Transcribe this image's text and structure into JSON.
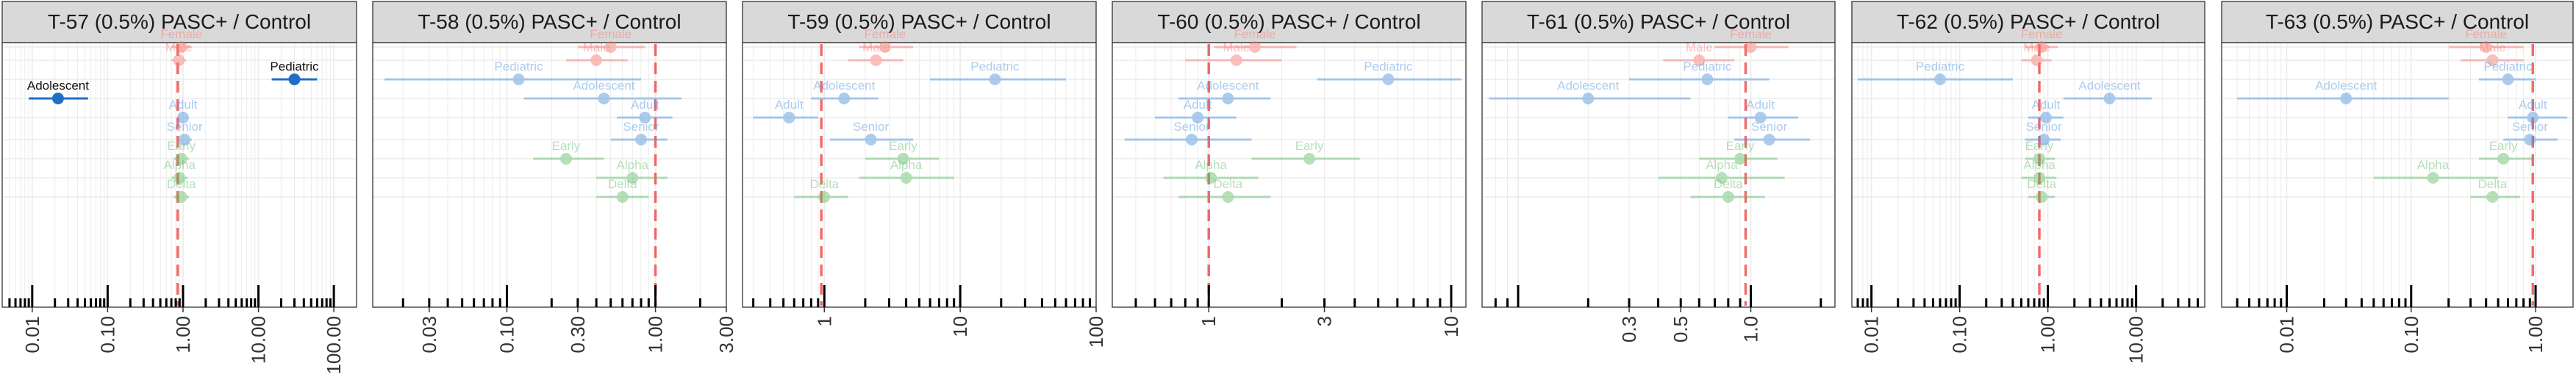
{
  "colors": {
    "sex": "#F8766D",
    "age": "#4A90D9",
    "variant": "#5DBB63",
    "highlight": "#1F6FC5",
    "reference_line": "#EE3B3B",
    "strip_fill": "#D9D9D9",
    "grid": "#EBEBEB"
  },
  "chart_data": [
    {
      "type": "scatter",
      "title": "T-57 (0.5%) PASC+ / Control",
      "log_x": true,
      "xlim": [
        0.004,
        200
      ],
      "ticks": [
        0.01,
        0.1,
        1,
        10,
        100
      ],
      "tick_labels": [
        "0.01",
        "0.10",
        "1.00",
        "10.00",
        "100.00"
      ],
      "ref": 0.85,
      "points": [
        {
          "label": "Female",
          "group": "sex",
          "x": 0.95,
          "lo": 0.7,
          "hi": 1.25
        },
        {
          "label": "Male",
          "group": "sex",
          "x": 0.88,
          "lo": 0.7,
          "hi": 1.1
        },
        {
          "label": "Pediatric",
          "group": "age",
          "x": 30,
          "lo": 15,
          "hi": 60,
          "highlight": true
        },
        {
          "label": "Adolescent",
          "group": "age",
          "x": 0.022,
          "lo": 0.009,
          "hi": 0.055,
          "highlight": true
        },
        {
          "label": "Adult",
          "group": "age",
          "x": 1.0,
          "lo": 0.85,
          "hi": 1.2
        },
        {
          "label": "Senior",
          "group": "age",
          "x": 1.05,
          "lo": 0.85,
          "hi": 1.3
        },
        {
          "label": "Early",
          "group": "variant",
          "x": 0.95,
          "lo": 0.75,
          "hi": 1.2
        },
        {
          "label": "Alpha",
          "group": "variant",
          "x": 0.9,
          "lo": 0.7,
          "hi": 1.15
        },
        {
          "label": "Delta",
          "group": "variant",
          "x": 0.95,
          "lo": 0.75,
          "hi": 1.2
        }
      ]
    },
    {
      "type": "scatter",
      "title": "T-58 (0.5%) PASC+ / Control",
      "log_x": true,
      "xlim": [
        0.0125,
        3.0
      ],
      "ticks": [
        0.03,
        0.1,
        0.3,
        1,
        3
      ],
      "tick_labels": [
        "0.03",
        "0.10",
        "0.30",
        "1.00",
        "3.00"
      ],
      "ref": 1.0,
      "points": [
        {
          "label": "Female",
          "group": "sex",
          "x": 0.5,
          "lo": 0.3,
          "hi": 0.85
        },
        {
          "label": "Male",
          "group": "sex",
          "x": 0.4,
          "lo": 0.25,
          "hi": 0.65
        },
        {
          "label": "Pediatric",
          "group": "age",
          "x": 0.12,
          "lo": 0.015,
          "hi": 0.8
        },
        {
          "label": "Adolescent",
          "group": "age",
          "x": 0.45,
          "lo": 0.13,
          "hi": 1.5
        },
        {
          "label": "Adult",
          "group": "age",
          "x": 0.85,
          "lo": 0.55,
          "hi": 1.3
        },
        {
          "label": "Senior",
          "group": "age",
          "x": 0.8,
          "lo": 0.5,
          "hi": 1.2
        },
        {
          "label": "Early",
          "group": "variant",
          "x": 0.25,
          "lo": 0.15,
          "hi": 0.45
        },
        {
          "label": "Alpha",
          "group": "variant",
          "x": 0.7,
          "lo": 0.4,
          "hi": 1.2
        },
        {
          "label": "Delta",
          "group": "variant",
          "x": 0.6,
          "lo": 0.4,
          "hi": 0.9
        }
      ]
    },
    {
      "type": "scatter",
      "title": "T-59 (0.5%) PASC+ / Control",
      "log_x": true,
      "xlim": [
        0.25,
        100
      ],
      "ticks": [
        1,
        10,
        100
      ],
      "tick_labels": [
        "1",
        "10",
        "100"
      ],
      "ref": 0.95,
      "points": [
        {
          "label": "Female",
          "group": "sex",
          "x": 2.8,
          "lo": 1.8,
          "hi": 4.5
        },
        {
          "label": "Male",
          "group": "sex",
          "x": 2.4,
          "lo": 1.5,
          "hi": 3.8
        },
        {
          "label": "Pediatric",
          "group": "age",
          "x": 18,
          "lo": 6,
          "hi": 60
        },
        {
          "label": "Adolescent",
          "group": "age",
          "x": 1.4,
          "lo": 0.8,
          "hi": 2.5
        },
        {
          "label": "Adult",
          "group": "age",
          "x": 0.55,
          "lo": 0.3,
          "hi": 0.9
        },
        {
          "label": "Senior",
          "group": "age",
          "x": 2.2,
          "lo": 1.1,
          "hi": 4.5
        },
        {
          "label": "Early",
          "group": "variant",
          "x": 3.8,
          "lo": 2.0,
          "hi": 7.0
        },
        {
          "label": "Alpha",
          "group": "variant",
          "x": 4.0,
          "lo": 1.8,
          "hi": 9.0
        },
        {
          "label": "Delta",
          "group": "variant",
          "x": 1.0,
          "lo": 0.6,
          "hi": 1.5
        }
      ]
    },
    {
      "type": "scatter",
      "title": "T-60 (0.5%) PASC+ / Control",
      "log_x": true,
      "xlim": [
        0.4,
        11.5
      ],
      "ticks": [
        1,
        3,
        10
      ],
      "tick_labels": [
        "1",
        "3",
        "10"
      ],
      "ref": 1.0,
      "points": [
        {
          "label": "Female",
          "group": "sex",
          "x": 1.55,
          "lo": 1.05,
          "hi": 2.3
        },
        {
          "label": "Male",
          "group": "sex",
          "x": 1.3,
          "lo": 0.8,
          "hi": 2.0
        },
        {
          "label": "Pediatric",
          "group": "age",
          "x": 5.5,
          "lo": 2.8,
          "hi": 11.0
        },
        {
          "label": "Adolescent",
          "group": "age",
          "x": 1.2,
          "lo": 0.75,
          "hi": 1.8
        },
        {
          "label": "Adult",
          "group": "age",
          "x": 0.9,
          "lo": 0.6,
          "hi": 1.3
        },
        {
          "label": "Senior",
          "group": "age",
          "x": 0.85,
          "lo": 0.45,
          "hi": 1.5
        },
        {
          "label": "Early",
          "group": "variant",
          "x": 2.6,
          "lo": 1.5,
          "hi": 4.2
        },
        {
          "label": "Alpha",
          "group": "variant",
          "x": 1.02,
          "lo": 0.65,
          "hi": 1.6
        },
        {
          "label": "Delta",
          "group": "variant",
          "x": 1.2,
          "lo": 0.75,
          "hi": 1.8
        }
      ]
    },
    {
      "type": "scatter",
      "title": "T-61 (0.5%) PASC+ / Control",
      "log_x": true,
      "xlim": [
        0.07,
        2.3
      ],
      "ticks": [
        0.3,
        0.5,
        1
      ],
      "tick_labels": [
        "0.3",
        "0.5",
        "1.0"
      ],
      "ref": 0.95,
      "points": [
        {
          "label": "Female",
          "group": "sex",
          "x": 1.0,
          "lo": 0.7,
          "hi": 1.45
        },
        {
          "label": "Male",
          "group": "sex",
          "x": 0.6,
          "lo": 0.42,
          "hi": 0.85
        },
        {
          "label": "Pediatric",
          "group": "age",
          "x": 0.65,
          "lo": 0.3,
          "hi": 1.2
        },
        {
          "label": "Adolescent",
          "group": "age",
          "x": 0.2,
          "lo": 0.075,
          "hi": 0.55
        },
        {
          "label": "Adult",
          "group": "age",
          "x": 1.1,
          "lo": 0.8,
          "hi": 1.6
        },
        {
          "label": "Senior",
          "group": "age",
          "x": 1.2,
          "lo": 0.85,
          "hi": 1.8
        },
        {
          "label": "Early",
          "group": "variant",
          "x": 0.9,
          "lo": 0.6,
          "hi": 1.3
        },
        {
          "label": "Alpha",
          "group": "variant",
          "x": 0.75,
          "lo": 0.4,
          "hi": 1.4
        },
        {
          "label": "Delta",
          "group": "variant",
          "x": 0.8,
          "lo": 0.55,
          "hi": 1.15
        }
      ]
    },
    {
      "type": "scatter",
      "title": "T-62 (0.5%) PASC+ / Control",
      "log_x": true,
      "xlim": [
        0.006,
        60
      ],
      "ticks": [
        0.01,
        0.1,
        1,
        10
      ],
      "tick_labels": [
        "0.01",
        "0.10",
        "1.00",
        "10.00"
      ],
      "ref": 0.8,
      "points": [
        {
          "label": "Female",
          "group": "sex",
          "x": 0.85,
          "lo": 0.55,
          "hi": 1.3
        },
        {
          "label": "Male",
          "group": "sex",
          "x": 0.75,
          "lo": 0.5,
          "hi": 1.1
        },
        {
          "label": "Pediatric",
          "group": "age",
          "x": 0.06,
          "lo": 0.007,
          "hi": 0.4
        },
        {
          "label": "Adolescent",
          "group": "age",
          "x": 5.0,
          "lo": 1.5,
          "hi": 15
        },
        {
          "label": "Adult",
          "group": "age",
          "x": 0.95,
          "lo": 0.6,
          "hi": 1.5
        },
        {
          "label": "Senior",
          "group": "age",
          "x": 0.9,
          "lo": 0.55,
          "hi": 1.4
        },
        {
          "label": "Early",
          "group": "variant",
          "x": 0.8,
          "lo": 0.55,
          "hi": 1.2
        },
        {
          "label": "Alpha",
          "group": "variant",
          "x": 0.8,
          "lo": 0.5,
          "hi": 1.25
        },
        {
          "label": "Delta",
          "group": "variant",
          "x": 0.85,
          "lo": 0.6,
          "hi": 1.2
        }
      ]
    },
    {
      "type": "scatter",
      "title": "T-63 (0.5%) PASC+ / Control",
      "log_x": true,
      "xlim": [
        0.003,
        2.0
      ],
      "ticks": [
        0.01,
        0.1,
        1
      ],
      "tick_labels": [
        "0.01",
        "0.10",
        "1.00"
      ],
      "ref": 0.95,
      "points": [
        {
          "label": "Female",
          "group": "sex",
          "x": 0.4,
          "lo": 0.2,
          "hi": 0.8
        },
        {
          "label": "Male",
          "group": "sex",
          "x": 0.45,
          "lo": 0.25,
          "hi": 0.8
        },
        {
          "label": "Pediatric",
          "group": "age",
          "x": 0.6,
          "lo": 0.35,
          "hi": 1.0
        },
        {
          "label": "Adolescent",
          "group": "age",
          "x": 0.03,
          "lo": 0.004,
          "hi": 0.2
        },
        {
          "label": "Adult",
          "group": "age",
          "x": 0.95,
          "lo": 0.6,
          "hi": 1.8
        },
        {
          "label": "Senior",
          "group": "age",
          "x": 0.9,
          "lo": 0.55,
          "hi": 1.5
        },
        {
          "label": "Early",
          "group": "variant",
          "x": 0.55,
          "lo": 0.35,
          "hi": 0.95
        },
        {
          "label": "Alpha",
          "group": "variant",
          "x": 0.15,
          "lo": 0.05,
          "hi": 0.5
        },
        {
          "label": "Delta",
          "group": "variant",
          "x": 0.45,
          "lo": 0.3,
          "hi": 0.75
        }
      ]
    }
  ]
}
